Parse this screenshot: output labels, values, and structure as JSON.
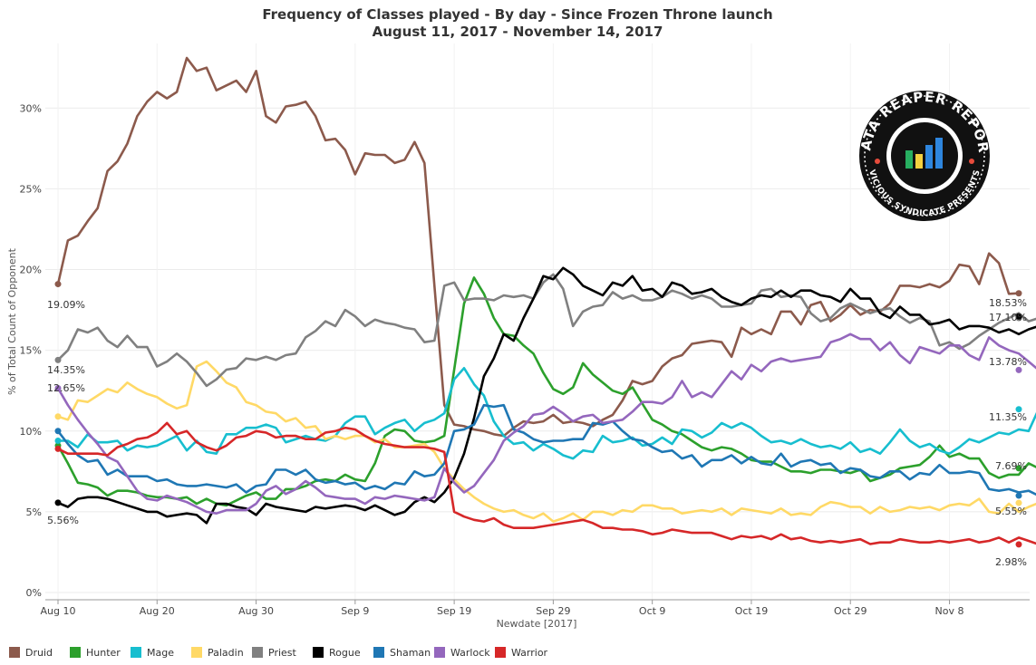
{
  "chart_data": {
    "type": "line",
    "title": "Frequency of Classes played - By day - Since Frozen Throne launch",
    "subtitle": "August 11, 2017 - November 14, 2017",
    "xlabel": "Newdate [2017]",
    "ylabel": "% of Total Count of Opponent",
    "x_start": "2017-08-10",
    "x_tick_labels": [
      "Aug 10",
      "Aug 20",
      "Aug 30",
      "Sep 9",
      "Sep 19",
      "Sep 29",
      "Oct 9",
      "Oct 19",
      "Oct 29",
      "Nov 8"
    ],
    "y_tick_labels": [
      "0%",
      "5%",
      "10%",
      "15%",
      "20%",
      "25%",
      "30%"
    ],
    "ylim": [
      0,
      34
    ],
    "grid": true,
    "legend_position": "bottom",
    "series": [
      {
        "name": "Druid",
        "color": "#8c5a4c",
        "start_label": "19.09%",
        "end_label": "18.53%",
        "values": [
          19.1,
          21.8,
          22.1,
          23.0,
          23.8,
          26.1,
          26.7,
          27.8,
          29.5,
          30.4,
          31.0,
          30.6,
          31.0,
          33.1,
          32.3,
          32.5,
          31.1,
          31.4,
          31.7,
          31.0,
          32.3,
          29.5,
          29.1,
          30.1,
          30.2,
          30.4,
          29.5,
          28.0,
          28.1,
          27.4,
          25.9,
          27.2,
          27.1,
          27.1,
          26.6,
          26.8,
          27.9,
          26.6,
          19.0,
          11.6,
          10.4,
          10.3,
          10.1,
          10.0,
          9.8,
          9.7,
          10.2,
          10.6,
          10.5,
          10.6,
          11.0,
          10.5,
          10.6,
          10.5,
          10.3,
          10.7,
          11.0,
          11.9,
          13.1,
          12.9,
          13.1,
          14.0,
          14.5,
          14.7,
          15.4,
          15.5,
          15.6,
          15.5,
          14.6,
          16.4,
          16.0,
          16.3,
          16.0,
          17.4,
          17.4,
          16.6,
          17.8,
          18.0,
          16.8,
          17.2,
          17.8,
          17.2,
          17.5,
          17.4,
          17.9,
          19.0,
          19.0,
          18.9,
          19.1,
          18.9,
          19.3,
          20.3,
          20.2,
          19.1,
          21.0,
          20.4,
          18.5,
          18.53
        ]
      },
      {
        "name": "Hunter",
        "color": "#2ca02c",
        "start_label": "",
        "end_label": "7.69%",
        "values": [
          9.1,
          8.0,
          6.8,
          6.7,
          6.5,
          6.0,
          6.3,
          6.3,
          6.2,
          6.0,
          5.9,
          5.9,
          5.8,
          5.9,
          5.5,
          5.8,
          5.5,
          5.4,
          5.7,
          6.0,
          6.2,
          5.8,
          5.8,
          6.4,
          6.4,
          6.6,
          6.9,
          7.0,
          6.9,
          7.3,
          7.0,
          6.9,
          8.0,
          9.7,
          10.1,
          10.0,
          9.4,
          9.3,
          9.4,
          9.7,
          13.8,
          17.9,
          19.5,
          18.5,
          17.0,
          16.0,
          15.9,
          15.3,
          14.8,
          13.6,
          12.6,
          12.3,
          12.7,
          14.2,
          13.5,
          13.0,
          12.5,
          12.3,
          12.7,
          11.7,
          10.7,
          10.4,
          10.0,
          9.8,
          9.4,
          9.0,
          8.8,
          9.0,
          8.9,
          8.6,
          8.2,
          8.1,
          8.1,
          7.8,
          7.5,
          7.5,
          7.4,
          7.6,
          7.6,
          7.5,
          7.4,
          7.6,
          6.9,
          7.1,
          7.3,
          7.7,
          7.8,
          7.9,
          8.4,
          9.1,
          8.4,
          8.6,
          8.3,
          8.3,
          7.4,
          7.1,
          7.3,
          7.3,
          8.0,
          7.69
        ]
      },
      {
        "name": "Mage",
        "color": "#17becf",
        "start_label": "",
        "end_label": "11.35%",
        "values": [
          9.4,
          9.4,
          9.0,
          9.8,
          9.3,
          9.3,
          9.4,
          8.8,
          9.1,
          9.0,
          9.1,
          9.4,
          9.7,
          8.8,
          9.4,
          8.7,
          8.6,
          9.8,
          9.8,
          10.2,
          10.2,
          10.4,
          10.2,
          9.3,
          9.5,
          9.7,
          9.5,
          9.4,
          9.7,
          10.5,
          10.9,
          10.9,
          9.8,
          10.2,
          10.5,
          10.7,
          10.0,
          10.5,
          10.7,
          11.1,
          13.2,
          13.9,
          12.9,
          12.2,
          10.6,
          9.7,
          9.2,
          9.3,
          8.8,
          9.2,
          8.9,
          8.5,
          8.3,
          8.8,
          8.7,
          9.7,
          9.3,
          9.4,
          9.6,
          9.1,
          9.2,
          9.6,
          9.2,
          10.1,
          10.0,
          9.6,
          9.9,
          10.5,
          10.2,
          10.5,
          10.2,
          9.7,
          9.3,
          9.4,
          9.2,
          9.5,
          9.2,
          9.0,
          9.1,
          8.9,
          9.3,
          8.7,
          8.9,
          8.6,
          9.3,
          10.1,
          9.4,
          9.0,
          9.2,
          8.8,
          8.6,
          9.0,
          9.5,
          9.3,
          9.6,
          9.9,
          9.8,
          10.1,
          10.0,
          11.35
        ]
      },
      {
        "name": "Paladin",
        "color": "#ffd966",
        "start_label": "",
        "end_label": "5.55%",
        "values": [
          10.9,
          10.7,
          11.9,
          11.8,
          12.2,
          12.6,
          12.4,
          13.0,
          12.6,
          12.3,
          12.1,
          11.7,
          11.4,
          11.6,
          14.0,
          14.3,
          13.7,
          13.0,
          12.7,
          11.8,
          11.6,
          11.2,
          11.1,
          10.6,
          10.8,
          10.2,
          10.3,
          9.5,
          9.7,
          9.5,
          9.7,
          9.7,
          9.3,
          9.5,
          9.0,
          9.0,
          9.1,
          9.2,
          8.7,
          7.7,
          7.0,
          6.4,
          5.9,
          5.5,
          5.2,
          5.0,
          5.1,
          4.8,
          4.6,
          4.9,
          4.4,
          4.6,
          4.9,
          4.5,
          5.0,
          5.0,
          4.8,
          5.1,
          5.0,
          5.4,
          5.4,
          5.2,
          5.2,
          4.9,
          5.0,
          5.1,
          5.0,
          5.2,
          4.8,
          5.2,
          5.1,
          5.0,
          4.9,
          5.2,
          4.8,
          4.9,
          4.8,
          5.3,
          5.6,
          5.5,
          5.3,
          5.3,
          4.9,
          5.3,
          5.0,
          5.1,
          5.3,
          5.2,
          5.3,
          5.1,
          5.4,
          5.5,
          5.4,
          5.8,
          5.0,
          4.9,
          5.5,
          5.0,
          5.3,
          5.55
        ]
      },
      {
        "name": "Priest",
        "color": "#808080",
        "start_label": "14.35%",
        "end_label": "",
        "values": [
          14.4,
          15.0,
          16.3,
          16.1,
          16.4,
          15.6,
          15.2,
          15.9,
          15.2,
          15.2,
          14.0,
          14.3,
          14.8,
          14.3,
          13.6,
          12.8,
          13.2,
          13.8,
          13.9,
          14.5,
          14.4,
          14.6,
          14.4,
          14.7,
          14.8,
          15.8,
          16.2,
          16.8,
          16.5,
          17.5,
          17.1,
          16.5,
          16.9,
          16.7,
          16.6,
          16.4,
          16.3,
          15.5,
          15.6,
          19.0,
          19.2,
          18.1,
          18.2,
          18.2,
          18.1,
          18.4,
          18.3,
          18.4,
          18.2,
          19.2,
          19.7,
          18.8,
          16.5,
          17.4,
          17.7,
          17.8,
          18.6,
          18.2,
          18.4,
          18.1,
          18.1,
          18.3,
          18.7,
          18.5,
          18.2,
          18.4,
          18.2,
          17.7,
          17.7,
          17.8,
          17.9,
          18.7,
          18.8,
          18.3,
          18.4,
          18.3,
          17.3,
          16.8,
          17.0,
          17.6,
          17.9,
          17.6,
          17.3,
          17.5,
          17.6,
          17.1,
          16.7,
          17.0,
          16.8,
          15.3,
          15.5,
          15.1,
          15.4,
          15.9,
          16.3,
          16.7,
          17.0,
          17.3,
          16.8,
          17.0
        ]
      },
      {
        "name": "Rogue",
        "color": "#000000",
        "start_label": "5.56%",
        "end_label": "17.10%",
        "values": [
          5.56,
          5.3,
          5.8,
          5.9,
          5.9,
          5.8,
          5.6,
          5.4,
          5.2,
          5.0,
          5.0,
          4.7,
          4.8,
          4.9,
          4.8,
          4.3,
          5.5,
          5.5,
          5.3,
          5.2,
          4.8,
          5.5,
          5.3,
          5.2,
          5.1,
          5.0,
          5.3,
          5.2,
          5.3,
          5.4,
          5.3,
          5.1,
          5.4,
          5.1,
          4.8,
          5.0,
          5.6,
          5.9,
          5.6,
          6.2,
          7.1,
          8.6,
          10.8,
          13.4,
          14.5,
          16.0,
          15.6,
          17.0,
          18.2,
          19.6,
          19.4,
          20.1,
          19.7,
          19.0,
          18.7,
          18.4,
          19.2,
          19.0,
          19.6,
          18.7,
          18.8,
          18.3,
          19.2,
          19.0,
          18.5,
          18.6,
          18.8,
          18.3,
          18.0,
          17.8,
          18.2,
          18.4,
          18.3,
          18.7,
          18.3,
          18.7,
          18.7,
          18.4,
          18.3,
          18.0,
          18.8,
          18.2,
          18.2,
          17.3,
          17.0,
          17.7,
          17.2,
          17.2,
          16.6,
          16.7,
          16.9,
          16.3,
          16.5,
          16.5,
          16.4,
          16.1,
          16.3,
          16.0,
          16.3,
          16.5,
          17.1
        ]
      },
      {
        "name": "Shaman",
        "color": "#1f77b4",
        "start_label": "",
        "end_label": "",
        "values": [
          10.0,
          9.2,
          8.5,
          8.1,
          8.2,
          7.3,
          7.6,
          7.2,
          7.2,
          7.2,
          6.9,
          7.0,
          6.7,
          6.6,
          6.6,
          6.7,
          6.6,
          6.5,
          6.7,
          6.2,
          6.6,
          6.7,
          7.6,
          7.6,
          7.3,
          7.6,
          7.0,
          6.8,
          6.9,
          6.7,
          6.8,
          6.4,
          6.6,
          6.4,
          6.8,
          6.7,
          7.5,
          7.2,
          7.3,
          8.0,
          10.0,
          10.1,
          10.4,
          11.6,
          11.5,
          11.6,
          10.1,
          9.9,
          9.5,
          9.3,
          9.4,
          9.4,
          9.5,
          9.5,
          10.5,
          10.4,
          10.6,
          10.0,
          9.5,
          9.4,
          9.0,
          8.7,
          8.8,
          8.3,
          8.5,
          7.8,
          8.2,
          8.2,
          8.5,
          8.0,
          8.4,
          8.0,
          7.9,
          8.6,
          7.8,
          8.1,
          8.2,
          7.9,
          8.0,
          7.4,
          7.7,
          7.6,
          7.2,
          7.1,
          7.5,
          7.5,
          7.0,
          7.4,
          7.3,
          7.9,
          7.4,
          7.4,
          7.5,
          7.4,
          6.4,
          6.3,
          6.4,
          6.2,
          6.3,
          6.0
        ]
      },
      {
        "name": "Warlock",
        "color": "#9467bd",
        "start_label": "12.65%",
        "end_label": "13.78%",
        "values": [
          12.65,
          11.6,
          10.7,
          9.9,
          9.2,
          8.4,
          8.1,
          7.2,
          6.3,
          5.8,
          5.7,
          6.0,
          5.8,
          5.6,
          5.3,
          5.0,
          4.9,
          5.1,
          5.1,
          5.1,
          5.5,
          6.3,
          6.6,
          6.1,
          6.4,
          6.9,
          6.5,
          6.0,
          5.9,
          5.8,
          5.8,
          5.5,
          5.9,
          5.8,
          6.0,
          5.9,
          5.8,
          5.7,
          5.9,
          7.7,
          6.8,
          6.2,
          6.6,
          7.4,
          8.2,
          9.4,
          9.9,
          10.3,
          11.0,
          11.1,
          11.5,
          11.1,
          10.6,
          10.9,
          11.0,
          10.5,
          10.6,
          10.7,
          11.2,
          11.8,
          11.8,
          11.7,
          12.1,
          13.1,
          12.1,
          12.4,
          12.1,
          12.9,
          13.7,
          13.2,
          14.1,
          13.7,
          14.3,
          14.5,
          14.3,
          14.4,
          14.5,
          14.6,
          15.5,
          15.7,
          16.0,
          15.7,
          15.7,
          15.0,
          15.5,
          14.7,
          14.2,
          15.2,
          15.0,
          14.8,
          15.3,
          15.3,
          14.7,
          14.4,
          15.8,
          15.3,
          15.0,
          14.8,
          14.3,
          13.78
        ]
      },
      {
        "name": "Warrior",
        "color": "#d62728",
        "start_label": "",
        "end_label": "2.98%",
        "values": [
          8.9,
          8.6,
          8.6,
          8.6,
          8.6,
          8.5,
          9.0,
          9.2,
          9.5,
          9.6,
          9.9,
          10.5,
          9.8,
          10.0,
          9.3,
          9.0,
          8.8,
          9.1,
          9.6,
          9.7,
          10.0,
          9.9,
          9.6,
          9.7,
          9.7,
          9.5,
          9.5,
          9.9,
          10.0,
          10.2,
          10.1,
          9.7,
          9.4,
          9.2,
          9.1,
          9.0,
          9.0,
          9.0,
          8.9,
          8.7,
          5.0,
          4.7,
          4.5,
          4.4,
          4.6,
          4.2,
          4.0,
          4.0,
          4.0,
          4.1,
          4.2,
          4.3,
          4.4,
          4.5,
          4.3,
          4.0,
          4.0,
          3.9,
          3.9,
          3.8,
          3.6,
          3.7,
          3.9,
          3.8,
          3.7,
          3.7,
          3.7,
          3.5,
          3.3,
          3.5,
          3.4,
          3.5,
          3.3,
          3.6,
          3.3,
          3.4,
          3.2,
          3.1,
          3.2,
          3.1,
          3.2,
          3.3,
          3.0,
          3.1,
          3.1,
          3.3,
          3.2,
          3.1,
          3.1,
          3.2,
          3.1,
          3.2,
          3.3,
          3.1,
          3.2,
          3.4,
          3.1,
          3.4,
          3.2,
          2.98
        ]
      }
    ]
  },
  "logo": {
    "text_top": "DATA REAPER REPORT",
    "text_bottom": "VICIOUS SYNDICATE PRESENTS"
  }
}
